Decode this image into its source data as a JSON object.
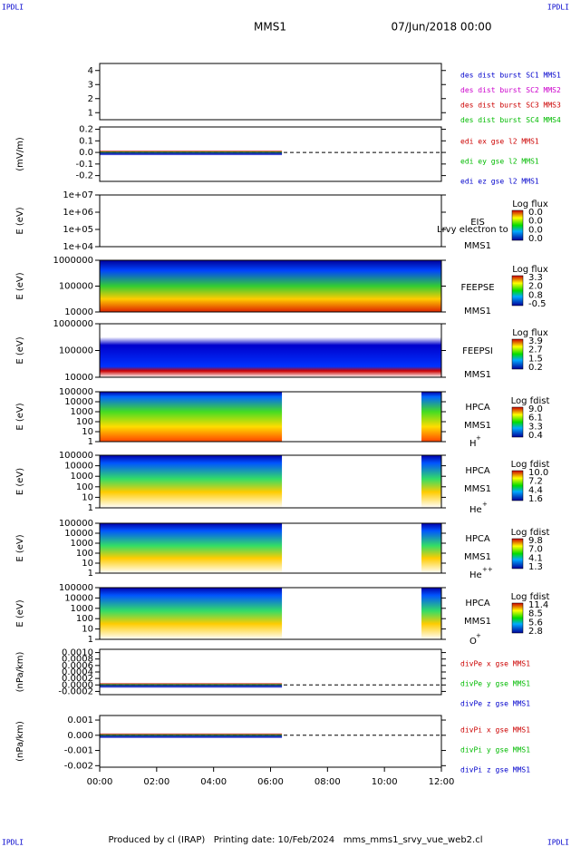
{
  "header": {
    "corner_labels": [
      "IPDLI",
      "IPDLI",
      "IPDLI",
      "IPDLI"
    ],
    "title": "MMS1",
    "date": "07/Jun/2018 00:00"
  },
  "footer": "Produced by cl (IRAP)   Printing date: 10/Feb/2024   mms_mms1_srvy_vue_web2.cl",
  "chart_data": [
    {
      "type": "line",
      "ylim": [
        0.5,
        4.5
      ],
      "yticks": [
        1,
        2,
        3,
        4
      ],
      "series": [
        {
          "name": "des dist burst SC1 MMS1",
          "color": "#0000cc"
        },
        {
          "name": "des dist burst SC2 MMS2",
          "color": "#cc00cc"
        },
        {
          "name": "des dist burst SC3 MMS3",
          "color": "#cc0000"
        },
        {
          "name": "des dist burst SC4 MMS4",
          "color": "#00bb00"
        }
      ]
    },
    {
      "type": "line",
      "ylabel": "(mV/m)",
      "ylim": [
        -0.25,
        0.22
      ],
      "yticks": [
        -0.2,
        -0.1,
        {
          "value": 0,
          "label": "0.0"
        },
        0.1,
        0.2
      ],
      "series": [
        {
          "name": "edi ex gse l2 MMS1",
          "color": "#cc0000"
        },
        {
          "name": "edi ey gse l2 MMS1",
          "color": "#00bb00"
        },
        {
          "name": "edi ez gse l2 MMS1",
          "color": "#0000cc"
        }
      ]
    },
    {
      "type": "spectrogram",
      "ylabel": "E (eV)",
      "log": true,
      "ylim": [
        10000,
        10000000
      ],
      "yticks": [
        {
          "value": 10000,
          "label": "1e+04"
        },
        {
          "value": 100000,
          "label": "1e+05"
        },
        {
          "value": 1000000,
          "label": "1e+06"
        },
        {
          "value": 10000000,
          "label": "1e+07"
        }
      ],
      "instrument": [
        "EIS",
        "MMS1"
      ],
      "annotation": "Lrvy electron to",
      "colorbar": {
        "title": "Log flux",
        "ticks": [
          "0.0",
          "0.0",
          "0.0",
          "0.0"
        ]
      }
    },
    {
      "type": "spectrogram",
      "ylabel": "E (eV)",
      "log": true,
      "ylim": [
        10000,
        1000000
      ],
      "yticks": [
        10000,
        100000,
        1000000
      ],
      "instrument": [
        "FEEPSE",
        "MMS1"
      ],
      "coverage": [
        [
          0,
          12
        ]
      ],
      "colorbar": {
        "title": "Log flux",
        "ticks": [
          "3.3",
          "2.0",
          "0.8",
          "-0.5"
        ]
      }
    },
    {
      "type": "spectrogram",
      "ylabel": "E (eV)",
      "log": true,
      "ylim": [
        10000,
        1000000
      ],
      "yticks": [
        10000,
        100000,
        1000000
      ],
      "instrument": [
        "FEEPSI",
        "MMS1"
      ],
      "coverage": [
        [
          0,
          12
        ]
      ],
      "colorbar": {
        "title": "Log flux",
        "ticks": [
          "3.9",
          "2.7",
          "1.5",
          "0.2"
        ]
      }
    },
    {
      "type": "spectrogram",
      "ylabel": "E (eV)",
      "log": true,
      "ylim": [
        1,
        100000
      ],
      "yticks": [
        1,
        10,
        100,
        1000,
        10000,
        100000
      ],
      "instrument": [
        "HPCA",
        "MMS1"
      ],
      "species": [
        "H",
        "+"
      ],
      "coverage": [
        [
          0,
          6.4
        ],
        [
          11.3,
          12
        ]
      ],
      "colorbar": {
        "title": "Log fdist",
        "ticks": [
          "9.0",
          "6.1",
          "3.3",
          "0.4"
        ]
      }
    },
    {
      "type": "spectrogram",
      "ylabel": "E (eV)",
      "log": true,
      "ylim": [
        1,
        100000
      ],
      "yticks": [
        1,
        10,
        100,
        1000,
        10000,
        100000
      ],
      "instrument": [
        "HPCA",
        "MMS1"
      ],
      "species": [
        "He",
        "+"
      ],
      "coverage": [
        [
          0,
          6.4
        ],
        [
          11.3,
          12
        ]
      ],
      "colorbar": {
        "title": "Log fdist",
        "ticks": [
          "10.0",
          "7.2",
          "4.4",
          "1.6"
        ]
      }
    },
    {
      "type": "spectrogram",
      "ylabel": "E (eV)",
      "log": true,
      "ylim": [
        1,
        100000
      ],
      "yticks": [
        1,
        10,
        100,
        1000,
        10000,
        100000
      ],
      "instrument": [
        "HPCA",
        "MMS1"
      ],
      "species": [
        "He",
        "++"
      ],
      "coverage": [
        [
          0,
          6.4
        ],
        [
          11.3,
          12
        ]
      ],
      "colorbar": {
        "title": "Log fdist",
        "ticks": [
          "9.8",
          "7.0",
          "4.1",
          "1.3"
        ]
      }
    },
    {
      "type": "spectrogram",
      "ylabel": "E (eV)",
      "log": true,
      "ylim": [
        1,
        100000
      ],
      "yticks": [
        1,
        10,
        100,
        1000,
        10000,
        100000
      ],
      "instrument": [
        "HPCA",
        "MMS1"
      ],
      "species": [
        "O",
        "+"
      ],
      "coverage": [
        [
          0,
          6.4
        ],
        [
          11.3,
          12
        ]
      ],
      "colorbar": {
        "title": "Log fdist",
        "ticks": [
          "11.4",
          "8.5",
          "5.6",
          "2.8"
        ]
      }
    },
    {
      "type": "line",
      "ylabel": "(nPa/km)",
      "ylim": [
        -0.0003,
        0.0011
      ],
      "yticks": [
        -0.0002,
        {
          "value": 0,
          "label": "0.0000"
        },
        0.0002,
        0.0004,
        0.0006,
        0.0008,
        {
          "value": 0.001,
          "label": "0.0010"
        }
      ],
      "series": [
        {
          "name": "divPe x gse MMS1",
          "color": "#cc0000"
        },
        {
          "name": "divPe y gse MMS1",
          "color": "#00bb00"
        },
        {
          "name": "divPe z gse MMS1",
          "color": "#0000cc"
        }
      ]
    },
    {
      "type": "line",
      "ylabel": "(nPa/km)",
      "ylim": [
        -0.0021,
        0.0013
      ],
      "yticks": [
        -0.002,
        -0.001,
        {
          "value": 0,
          "label": "0.000"
        },
        0.001
      ],
      "series": [
        {
          "name": "divPi x gse MMS1",
          "color": "#cc0000"
        },
        {
          "name": "divPi y gse MMS1",
          "color": "#00bb00"
        },
        {
          "name": "divPi z gse MMS1",
          "color": "#0000cc"
        }
      ],
      "xlim": [
        0,
        12
      ],
      "xticks": [
        {
          "value": 0,
          "label": "00:00"
        },
        {
          "value": 2,
          "label": "02:00"
        },
        {
          "value": 4,
          "label": "04:00"
        },
        {
          "value": 6,
          "label": "06:00"
        },
        {
          "value": 8,
          "label": "08:00"
        },
        {
          "value": 10,
          "label": "10:00"
        },
        {
          "value": 12,
          "label": "12:00"
        }
      ]
    }
  ]
}
